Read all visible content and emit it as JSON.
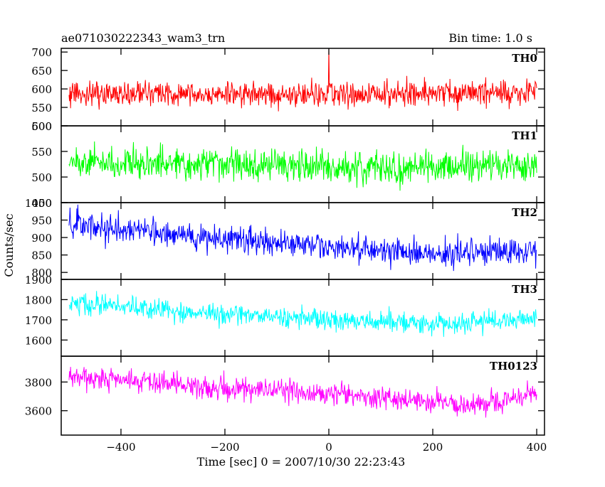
{
  "header": {
    "title": "ae071030222343_wam3_trn",
    "bin_time": "Bin time: 1.0 s"
  },
  "chart_data": {
    "type": "line",
    "title": "ae071030222343_wam3_trn",
    "subtitle": "Bin time: 1.0 s",
    "xlabel": "Time [sec] 0 = 2007/10/30 22:23:43",
    "ylabel": "Counts/sec",
    "xlim": [
      -515,
      415
    ],
    "x_ticks": [
      -400,
      -200,
      0,
      200,
      400
    ],
    "x_start": -500,
    "x_end": 400,
    "x_step": 1,
    "grid": false,
    "panels": [
      {
        "name": "TH0",
        "color": "#ff0000",
        "ylim": [
          500,
          710
        ],
        "y_ticks": [
          500,
          550,
          600,
          650,
          700
        ],
        "trend": [
          [
            -500,
            585
          ],
          [
            -250,
            585
          ],
          [
            0,
            585
          ],
          [
            200,
            585
          ],
          [
            400,
            590
          ]
        ],
        "noise": 28,
        "spikes": [
          {
            "x": 0,
            "y": 712
          }
        ]
      },
      {
        "name": "TH1",
        "color": "#00ff00",
        "ylim": [
          450,
          600
        ],
        "y_ticks": [
          450,
          500,
          550,
          600
        ],
        "trend": [
          [
            -500,
            530
          ],
          [
            -250,
            525
          ],
          [
            0,
            520
          ],
          [
            200,
            518
          ],
          [
            400,
            522
          ]
        ],
        "noise": 26,
        "spikes": []
      },
      {
        "name": "TH2",
        "color": "#0000ff",
        "ylim": [
          780,
          1000
        ],
        "y_ticks": [
          800,
          850,
          900,
          950,
          1000
        ],
        "trend": [
          [
            -500,
            940
          ],
          [
            -250,
            905
          ],
          [
            0,
            875
          ],
          [
            200,
            855
          ],
          [
            300,
            855
          ],
          [
            400,
            865
          ]
        ],
        "noise": 32,
        "spikes": []
      },
      {
        "name": "TH3",
        "color": "#00ffff",
        "ylim": [
          1520,
          1900
        ],
        "y_ticks": [
          1600,
          1700,
          1800,
          1900
        ],
        "trend": [
          [
            -500,
            1790
          ],
          [
            -250,
            1735
          ],
          [
            0,
            1700
          ],
          [
            200,
            1680
          ],
          [
            400,
            1710
          ]
        ],
        "noise": 42,
        "spikes": []
      },
      {
        "name": "TH0123",
        "color": "#ff00ff",
        "ylim": [
          3430,
          3980
        ],
        "y_ticks": [
          3600,
          3800
        ],
        "trend": [
          [
            -500,
            3850
          ],
          [
            -250,
            3770
          ],
          [
            0,
            3720
          ],
          [
            200,
            3660
          ],
          [
            300,
            3640
          ],
          [
            400,
            3720
          ]
        ],
        "noise": 65,
        "spikes": []
      }
    ]
  }
}
